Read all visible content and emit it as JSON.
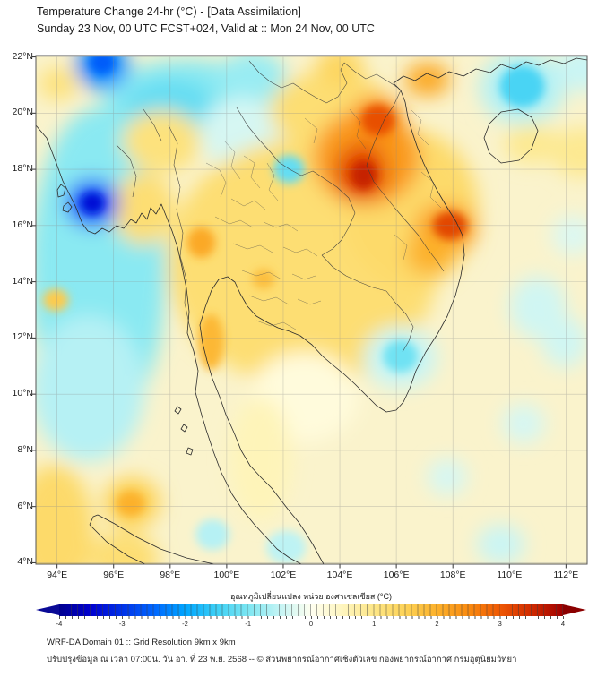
{
  "header": {
    "title": "Temperature Change 24-hr (°C) - [Data Assimilation]",
    "subtitle": "Sunday 23 Nov, 00 UTC FCST+024, Valid at :: Mon 24 Nov, 00 UTC"
  },
  "footer": {
    "line1": "WRF-DA Domain 01 :: Grid Resolution 9km x 9km",
    "line2": "ปรับปรุงข้อมูล ณ เวลา 07:00น. วัน อา. ที่ 23 พ.ย. 2568 -- © ส่วนพยากรณ์อากาศเชิงตัวเลข กองพยากรณ์อากาศ กรมอุตุนิยมวิทยา"
  },
  "chart_data": {
    "type": "heatmap",
    "title": "Temperature Change 24-hr (°C) - [Data Assimilation]",
    "subtitle": "Sunday 23 Nov, 00 UTC FCST+024, Valid at :: Mon 24 Nov, 00 UTC",
    "lon_range": [
      93.25,
      112.75
    ],
    "lat_range": [
      3.95,
      22.05
    ],
    "grid": true,
    "x_ticks": [
      "94°E",
      "96°E",
      "98°E",
      "100°E",
      "102°E",
      "104°E",
      "106°E",
      "108°E",
      "110°E",
      "112°E"
    ],
    "x_tick_lons": [
      94,
      96,
      98,
      100,
      102,
      104,
      106,
      108,
      110,
      112
    ],
    "y_ticks": [
      "22°N",
      "20°N",
      "18°N",
      "16°N",
      "14°N",
      "12°N",
      "10°N",
      "8°N",
      "6°N",
      "4°N"
    ],
    "y_tick_lats": [
      22,
      20,
      18,
      16,
      14,
      12,
      10,
      8,
      6,
      4
    ],
    "base_value_color": "#FAF3CC",
    "palette": [
      {
        "v": -4.0,
        "c": "#00008F"
      },
      {
        "v": -3.5,
        "c": "#0000D0"
      },
      {
        "v": -3.0,
        "c": "#0032E8"
      },
      {
        "v": -2.5,
        "c": "#0066FF"
      },
      {
        "v": -2.0,
        "c": "#00A6FF"
      },
      {
        "v": -1.5,
        "c": "#3ED0F5"
      },
      {
        "v": -1.0,
        "c": "#7CE6F2"
      },
      {
        "v": -0.5,
        "c": "#C4F4F4"
      },
      {
        "v": 0.0,
        "c": "#FFFFF0"
      },
      {
        "v": 0.5,
        "c": "#FEF5BE"
      },
      {
        "v": 1.0,
        "c": "#FDE687"
      },
      {
        "v": 1.5,
        "c": "#FDD256"
      },
      {
        "v": 2.0,
        "c": "#FCB12C"
      },
      {
        "v": 2.5,
        "c": "#F98A10"
      },
      {
        "v": 3.0,
        "c": "#EE5804"
      },
      {
        "v": 3.5,
        "c": "#D02A00"
      },
      {
        "v": 4.0,
        "c": "#A00000"
      }
    ],
    "features": [
      {
        "name": "andaman-cool-band",
        "lon": 95.45,
        "lat": 14.4,
        "value": -0.9,
        "rx": 2.4,
        "ry": 5.8,
        "layer": "soft"
      },
      {
        "name": "south-andaman-cool",
        "lon": 95.1,
        "lat": 10.2,
        "value": -0.6,
        "rx": 2.0,
        "ry": 2.6,
        "layer": "soft"
      },
      {
        "name": "north-cool-band",
        "lon": 98.6,
        "lat": 20.4,
        "value": -0.9,
        "rx": 3.0,
        "ry": 1.5,
        "layer": "soft"
      },
      {
        "name": "north-cool-core",
        "lon": 98.0,
        "lat": 20.2,
        "value": -1.2,
        "rx": 1.6,
        "ry": 1.0,
        "layer": "soft"
      },
      {
        "name": "top-center-cool",
        "lon": 100.9,
        "lat": 21.3,
        "value": -0.8,
        "rx": 1.2,
        "ry": 0.9,
        "layer": "soft"
      },
      {
        "name": "nw-thailand-pale",
        "lon": 100.55,
        "lat": 19.25,
        "value": -0.35,
        "rx": 1.5,
        "ry": 1.3,
        "layer": "soft"
      },
      {
        "name": "thailand-warm-broad",
        "lon": 102.7,
        "lat": 14.7,
        "value": 1.2,
        "rx": 4.8,
        "ry": 4.4,
        "layer": "soft"
      },
      {
        "name": "indochina-warm-broad",
        "lon": 106.5,
        "lat": 16.6,
        "value": 1.3,
        "rx": 2.4,
        "ry": 2.8,
        "layer": "soft"
      },
      {
        "name": "laos-warm-broad",
        "lon": 103.7,
        "lat": 20.1,
        "value": 1.2,
        "rx": 2.2,
        "ry": 1.4,
        "layer": "soft"
      },
      {
        "name": "gulf-neutral",
        "lon": 102.75,
        "lat": 9.9,
        "value": 0.2,
        "rx": 1.9,
        "ry": 1.6,
        "layer": "soft"
      },
      {
        "name": "malay-peninsula-mild",
        "lon": 101.2,
        "lat": 7.7,
        "value": 0.55,
        "rx": 1.1,
        "ry": 2.2,
        "layer": "soft"
      },
      {
        "name": "sw-corner-warm",
        "lon": 93.9,
        "lat": 5.1,
        "value": 1.3,
        "rx": 1.4,
        "ry": 2.4,
        "layer": "soft"
      },
      {
        "name": "sumatra-warm",
        "lon": 96.4,
        "lat": 4.15,
        "value": 1.2,
        "rx": 1.2,
        "ry": 1.0,
        "layer": "soft"
      },
      {
        "name": "myanmar-warm-1",
        "lon": 97.7,
        "lat": 19.0,
        "value": 1.1,
        "rx": 1.4,
        "ry": 1.1,
        "layer": "soft"
      },
      {
        "name": "myanmar-warm-2",
        "lon": 97.05,
        "lat": 16.6,
        "value": 1.2,
        "rx": 1.1,
        "ry": 1.3,
        "layer": "soft"
      },
      {
        "name": "topleft-warm",
        "lon": 94.05,
        "lat": 21.05,
        "value": 1.1,
        "rx": 0.7,
        "ry": 0.6,
        "layer": "soft"
      },
      {
        "name": "top-edge-warm",
        "lon": 104.0,
        "lat": 21.65,
        "value": 1.4,
        "rx": 0.85,
        "ry": 0.7,
        "layer": "soft"
      },
      {
        "name": "hainan-warm",
        "lon": 110.8,
        "lat": 18.9,
        "value": 0.9,
        "rx": 1.0,
        "ry": 0.7,
        "layer": "soft"
      },
      {
        "name": "right-edge-warm",
        "lon": 112.55,
        "lat": 18.6,
        "value": 0.9,
        "rx": 1.1,
        "ry": 0.9,
        "layer": "soft"
      },
      {
        "name": "ne-vietnam-warm",
        "lon": 107.1,
        "lat": 21.2,
        "value": 2.1,
        "rx": 0.8,
        "ry": 0.6,
        "layer": "soft"
      },
      {
        "name": "laos-hot-surround",
        "lon": 104.95,
        "lat": 18.4,
        "value": 2.3,
        "rx": 1.9,
        "ry": 1.7,
        "layer": "soft"
      },
      {
        "name": "laos-hot",
        "lon": 104.75,
        "lat": 17.9,
        "value": 3.2,
        "rx": 0.9,
        "ry": 1.0,
        "layer": "soft"
      },
      {
        "name": "laos-hot-north-surround",
        "lon": 105.3,
        "lat": 19.7,
        "value": 2.4,
        "rx": 1.0,
        "ry": 0.9,
        "layer": "soft"
      },
      {
        "name": "central-vietnam-hot-surround",
        "lon": 107.75,
        "lat": 15.9,
        "value": 2.2,
        "rx": 1.1,
        "ry": 0.9,
        "layer": "soft"
      },
      {
        "name": "se-laos-warm",
        "lon": 107.2,
        "lat": 15.0,
        "value": 2.0,
        "rx": 0.85,
        "ry": 0.75,
        "layer": "soft"
      },
      {
        "name": "tonkin-cool-surround",
        "lon": 110.45,
        "lat": 20.9,
        "value": -0.6,
        "rx": 1.5,
        "ry": 1.3,
        "layer": "soft"
      },
      {
        "name": "mekong-cool-surround",
        "lon": 106.15,
        "lat": 11.3,
        "value": -0.45,
        "rx": 1.3,
        "ry": 1.1,
        "layer": "soft"
      },
      {
        "name": "sea-cool-1",
        "lon": 111.0,
        "lat": 13.1,
        "value": -0.4,
        "rx": 1.0,
        "ry": 1.1,
        "layer": "soft"
      },
      {
        "name": "sea-cool-2",
        "lon": 111.95,
        "lat": 11.85,
        "value": -0.4,
        "rx": 0.8,
        "ry": 0.9,
        "layer": "soft"
      },
      {
        "name": "sea-cool-3",
        "lon": 110.5,
        "lat": 8.95,
        "value": -0.35,
        "rx": 0.75,
        "ry": 0.7,
        "layer": "soft"
      },
      {
        "name": "sea-cool-4",
        "lon": 107.8,
        "lat": 7.05,
        "value": -0.35,
        "rx": 0.7,
        "ry": 0.65,
        "layer": "soft"
      },
      {
        "name": "sea-cool-5",
        "lon": 109.7,
        "lat": 4.65,
        "value": -0.45,
        "rx": 0.85,
        "ry": 0.7,
        "layer": "soft"
      },
      {
        "name": "sea-cool-6",
        "lon": 112.25,
        "lat": 15.65,
        "value": -0.3,
        "rx": 0.75,
        "ry": 0.7,
        "layer": "soft"
      },
      {
        "name": "ne-corner-cool",
        "lon": 112.6,
        "lat": 21.6,
        "value": -0.45,
        "rx": 0.95,
        "ry": 0.85,
        "layer": "soft"
      },
      {
        "name": "sw-sea-warm",
        "lon": 96.65,
        "lat": 6.15,
        "value": 1.5,
        "rx": 1.0,
        "ry": 0.9,
        "layer": "soft"
      },
      {
        "name": "bengal-cold-surround",
        "lon": 95.25,
        "lat": 16.8,
        "value": -2.6,
        "rx": 0.95,
        "ry": 0.85,
        "layer": "soft"
      },
      {
        "name": "top-bengal-cold",
        "lon": 95.6,
        "lat": 21.7,
        "value": -2.2,
        "rx": 0.95,
        "ry": 0.85,
        "layer": "soft"
      },
      {
        "name": "bengal-cold-core",
        "lon": 95.25,
        "lat": 16.8,
        "value": -3.4,
        "rx": 0.42,
        "ry": 0.38,
        "layer": "sharp"
      },
      {
        "name": "top-bengal-cold-core",
        "lon": 95.6,
        "lat": 21.8,
        "value": -2.6,
        "rx": 0.45,
        "ry": 0.4,
        "layer": "sharp"
      },
      {
        "name": "laos-hot-core",
        "lon": 104.85,
        "lat": 17.8,
        "value": 3.6,
        "rx": 0.45,
        "ry": 0.5,
        "layer": "sharp"
      },
      {
        "name": "laos-hot-north-core",
        "lon": 105.35,
        "lat": 19.75,
        "value": 3.1,
        "rx": 0.6,
        "ry": 0.55,
        "layer": "sharp"
      },
      {
        "name": "central-vietnam-hot-core",
        "lon": 107.9,
        "lat": 16.0,
        "value": 3.2,
        "rx": 0.6,
        "ry": 0.5,
        "layer": "sharp"
      },
      {
        "name": "tonkin-cool-core",
        "lon": 110.45,
        "lat": 20.95,
        "value": -1.4,
        "rx": 0.8,
        "ry": 0.75,
        "layer": "sharp"
      },
      {
        "name": "north-thai-cool-spot",
        "lon": 102.2,
        "lat": 18.0,
        "value": -1.2,
        "rx": 0.55,
        "ry": 0.5,
        "layer": "sharp"
      },
      {
        "name": "west-thai-hot-spot",
        "lon": 99.1,
        "lat": 15.4,
        "value": 2.1,
        "rx": 0.5,
        "ry": 0.55,
        "layer": "sharp"
      },
      {
        "name": "central-thai-hot-spot",
        "lon": 101.3,
        "lat": 14.1,
        "value": 1.8,
        "rx": 0.4,
        "ry": 0.35,
        "layer": "sharp"
      },
      {
        "name": "peninsula-hot-strip",
        "lon": 99.45,
        "lat": 11.85,
        "value": 1.9,
        "rx": 0.45,
        "ry": 1.0,
        "layer": "sharp"
      },
      {
        "name": "mekong-cool-core",
        "lon": 106.15,
        "lat": 11.35,
        "value": -1.1,
        "rx": 0.62,
        "ry": 0.58,
        "layer": "sharp"
      },
      {
        "name": "sw-sea-warm-core",
        "lon": 96.6,
        "lat": 6.1,
        "value": 2.0,
        "rx": 0.5,
        "ry": 0.45,
        "layer": "sharp"
      },
      {
        "name": "south-cool-spot-1",
        "lon": 99.5,
        "lat": 5.0,
        "value": -0.6,
        "rx": 0.6,
        "ry": 0.55,
        "layer": "sharp"
      },
      {
        "name": "south-cool-spot-2",
        "lon": 102.1,
        "lat": 4.55,
        "value": -0.55,
        "rx": 0.7,
        "ry": 0.6,
        "layer": "sharp"
      },
      {
        "name": "west-edge-warm-spot",
        "lon": 93.95,
        "lat": 13.35,
        "value": 1.6,
        "rx": 0.45,
        "ry": 0.4,
        "layer": "sharp"
      }
    ],
    "colorbar": {
      "label": "อุณหภูมิเปลี่ยนแปลง หน่วย องศาเซลเซียส (°C)",
      "ticks": [
        -4,
        -3,
        -2,
        -1,
        0,
        1,
        2,
        3,
        4
      ],
      "range": [
        -4,
        4
      ]
    }
  }
}
